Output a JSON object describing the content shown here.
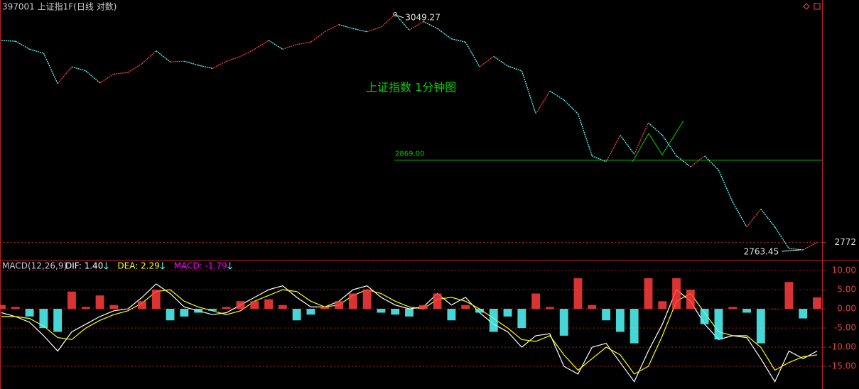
{
  "chart_data": [
    {
      "type": "line",
      "title": "397001 上证指1F(日线 对数)",
      "subtitle": "上证指数 1分钟图",
      "log": true,
      "ylim": [
        2752.8,
        3067.4
      ],
      "yticks": [
        2772
      ],
      "hline": {
        "value": 2869,
        "label": "2869.00",
        "color": "#00d000"
      },
      "series": [
        {
          "up_color": "#ff3c3c",
          "down_color": "#54fcfc",
          "values": [
            3016,
            3015,
            3005,
            3000,
            2962,
            2983,
            2978,
            2963,
            2974,
            2976,
            2987,
            3003,
            2989,
            2990,
            2985,
            2981,
            2990,
            2996,
            3005,
            3016,
            3005,
            3011,
            3014,
            3027,
            3036,
            3031,
            3027,
            3033,
            3049.27,
            3029,
            3040,
            3031,
            3018,
            3014,
            2983,
            2996,
            2984,
            2978,
            2925,
            2953,
            2942,
            2925,
            2874,
            2867,
            2899,
            2876,
            2914,
            2899,
            2874,
            2861,
            2874,
            2857,
            2819,
            2790,
            2811,
            2790,
            2765,
            2763.45,
            2772
          ]
        }
      ]
    },
    {
      "type": "macd",
      "title": "MACD(12,26,9)",
      "ylim": [
        -20.9,
        12.6
      ],
      "yticks": [
        {
          "value": 10,
          "label": "10.00"
        },
        {
          "value": 5,
          "label": "5.00"
        },
        {
          "value": 0,
          "label": "0.00"
        },
        {
          "value": -5,
          "label": "-5.00"
        },
        {
          "value": -10,
          "label": "-10.00"
        },
        {
          "value": -15,
          "label": "-15.00"
        }
      ],
      "series": [
        {
          "name": "DIF: 1.40",
          "color": "#ffffff",
          "values": [
            -1,
            -2,
            -3.5,
            -7,
            -11,
            -6,
            -4,
            -2,
            -0.5,
            0,
            3,
            6.5,
            4,
            0.5,
            -0.5,
            -1.5,
            -1,
            1,
            3,
            5,
            6,
            3,
            0.5,
            0.5,
            2,
            5,
            6,
            3,
            1,
            0,
            0.5,
            4,
            1,
            3,
            -1,
            -4,
            -6,
            -10,
            -7,
            -6.5,
            -15,
            -17,
            -10,
            -9,
            -14,
            -19,
            -11,
            -4,
            5,
            2,
            -4,
            -8,
            -7,
            -7.5,
            -13,
            -19,
            -11,
            -13,
            -11
          ]
        },
        {
          "name": "DEA: 2.29",
          "color": "#ffff00",
          "values": [
            -2,
            -2,
            -2.5,
            -4.5,
            -7.5,
            -8,
            -5,
            -3,
            -1.5,
            -0.5,
            1.5,
            4.5,
            5,
            2,
            0.5,
            -0.5,
            -1.5,
            -0.5,
            2,
            3.5,
            5,
            4.5,
            2,
            0.5,
            1,
            3.5,
            5,
            4,
            2,
            0.5,
            0,
            2.5,
            3,
            2,
            0,
            -2.5,
            -5,
            -8,
            -8.5,
            -7,
            -12,
            -16,
            -13,
            -10,
            -12,
            -17,
            -15,
            -7,
            2,
            4,
            -1,
            -6,
            -7,
            -7,
            -10,
            -16,
            -14,
            -12.5,
            -12
          ]
        },
        {
          "name": "MACD: -1.79",
          "color": "#ff00ff",
          "up_color": "#ff3c3c",
          "down_color": "#54fcfc",
          "values": [
            1,
            0.5,
            -2,
            -5,
            -6,
            4.5,
            0.5,
            3.5,
            1,
            0,
            2,
            5,
            -3,
            -2,
            -1,
            -0.5,
            0.5,
            2,
            2,
            2.5,
            1,
            -3,
            -1.5,
            0.5,
            2,
            4,
            5,
            -1,
            -1.5,
            -2,
            1,
            4,
            -3,
            1,
            -1,
            -6,
            -2,
            -5,
            4,
            0.5,
            -7,
            8,
            1,
            -3,
            -6,
            -9,
            8,
            2,
            8,
            5,
            -4,
            -8,
            0.5,
            -1,
            -9,
            0,
            7,
            -2.5,
            3
          ]
        }
      ]
    }
  ]
}
